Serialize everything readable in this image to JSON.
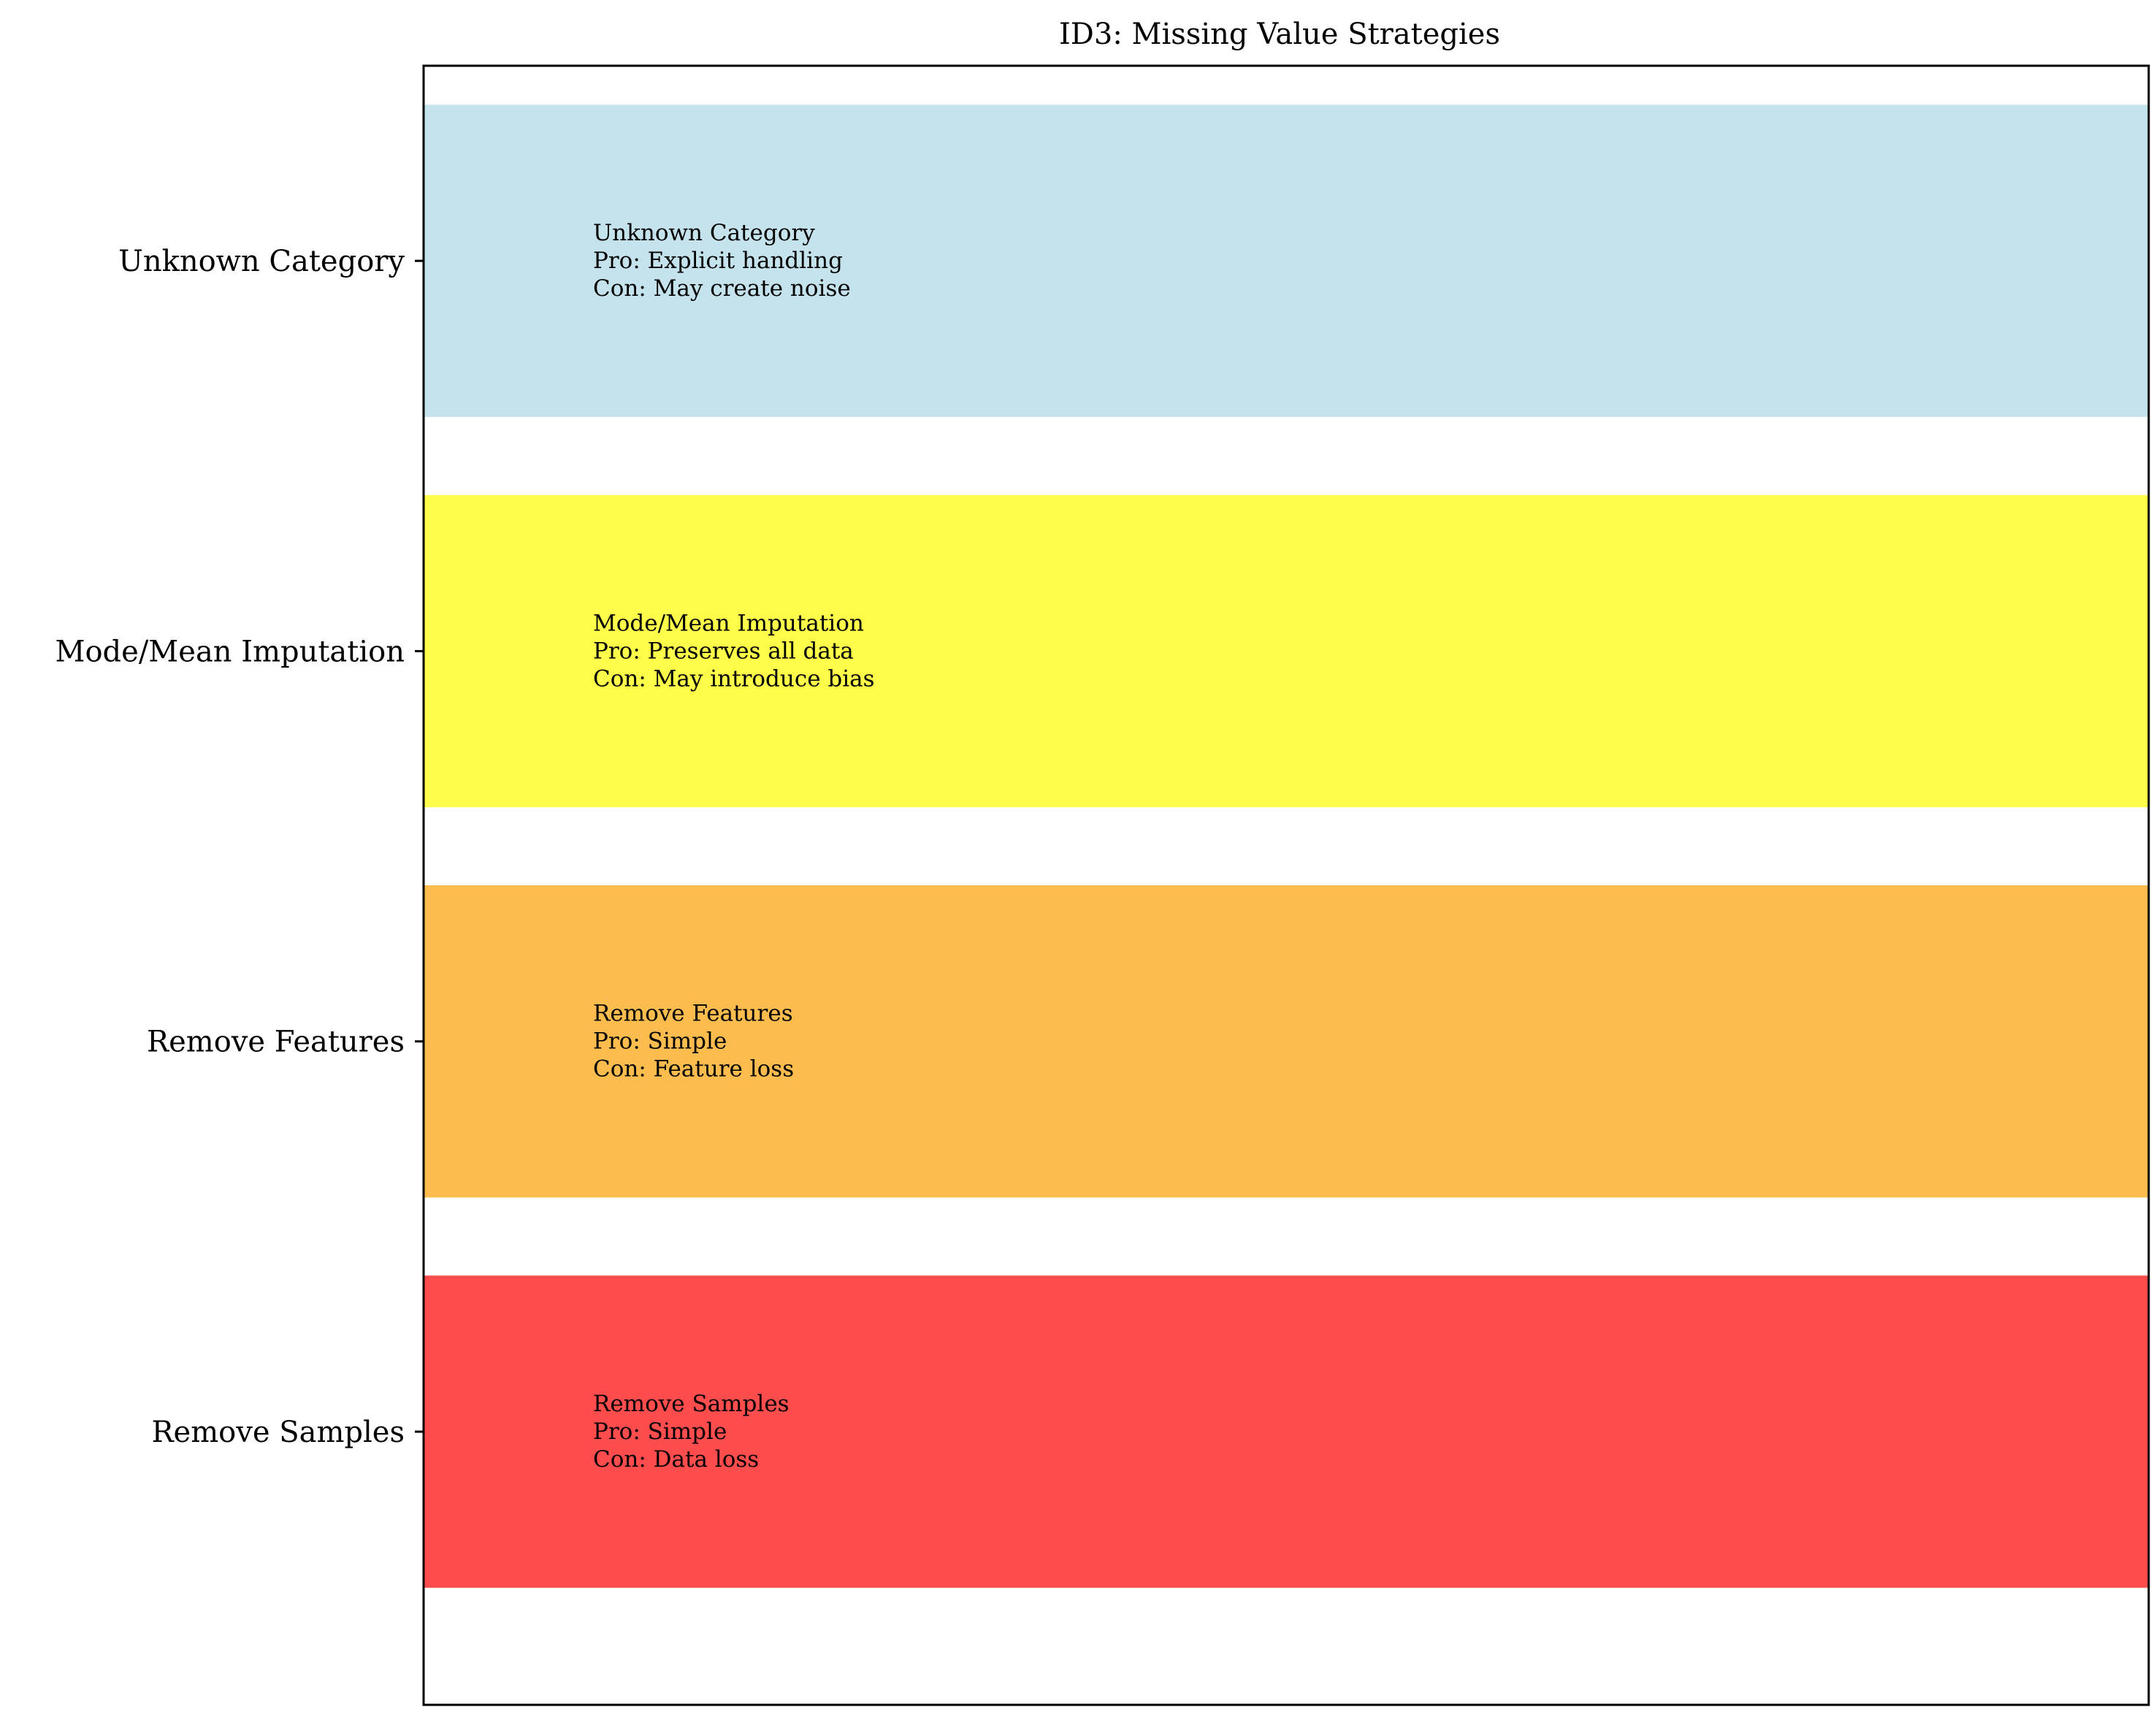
{
  "chart_data": {
    "type": "bar",
    "orientation": "horizontal",
    "title": "ID3: Missing Value Strategies",
    "xlabel": "",
    "ylabel": "",
    "grid": false,
    "categories": [
      "Remove Samples",
      "Remove Features",
      "Mode/Mean Imputation",
      "Unknown Category"
    ],
    "values": [
      1,
      1,
      1,
      1
    ],
    "xlim": [
      0,
      1
    ],
    "ylim": [
      -0.7,
      3.5
    ],
    "bar_height": 0.8,
    "colors": [
      "#ff4c4c",
      "#fdbd4e",
      "#fdfd4a",
      "#c5e3ec"
    ],
    "annotations": [
      [
        "Remove Samples",
        "Pro: Simple",
        "Con: Data loss"
      ],
      [
        "Remove Features",
        "Pro: Simple",
        "Con: Feature loss"
      ],
      [
        "Mode/Mean Imputation",
        "Pro: Preserves all data",
        "Con: May introduce bias"
      ],
      [
        "Unknown Category",
        "Pro: Explicit handling",
        "Con: May create noise"
      ]
    ]
  }
}
